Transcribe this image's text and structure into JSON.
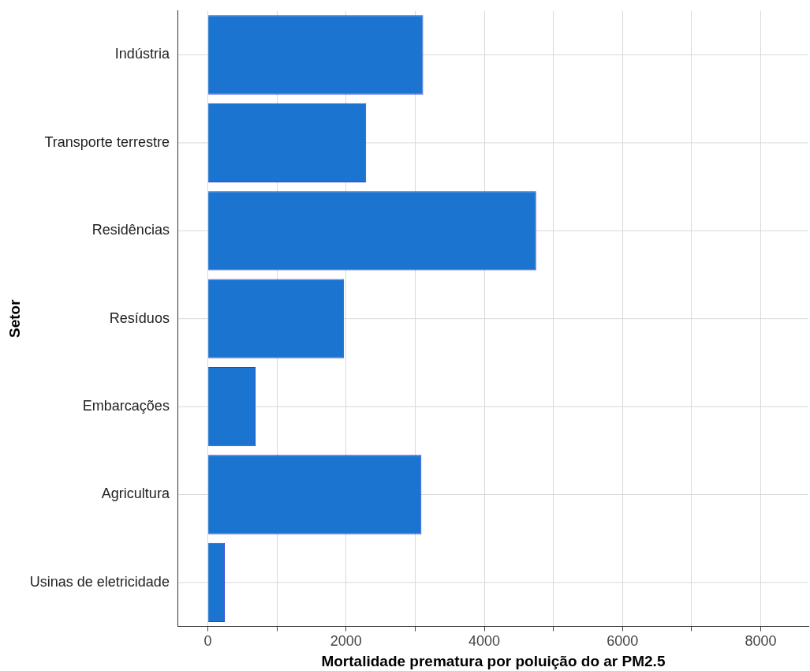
{
  "chart_data": {
    "type": "bar",
    "orientation": "horizontal",
    "categories": [
      "Indústria",
      "Transporte terrestre",
      "Residências",
      "Resíduos",
      "Embarcações",
      "Agricultura",
      "Usinas de eletricidade"
    ],
    "values": [
      3115,
      2290,
      4750,
      1970,
      690,
      3090,
      245
    ],
    "color": "#1b75d0",
    "xlim": [
      -430,
      8690
    ],
    "xticks": [
      0,
      {
        "value": 1000,
        "label": null
      },
      2000,
      {
        "value": 3000,
        "label": null
      },
      4000,
      {
        "value": 5000,
        "label": null
      },
      6000,
      {
        "value": 7000,
        "label": null
      },
      8000
    ],
    "xlabel": "Mortalidade prematura por poluição do ar PM2.5",
    "ylabel": "Setor",
    "grid": true,
    "legend": false
  }
}
